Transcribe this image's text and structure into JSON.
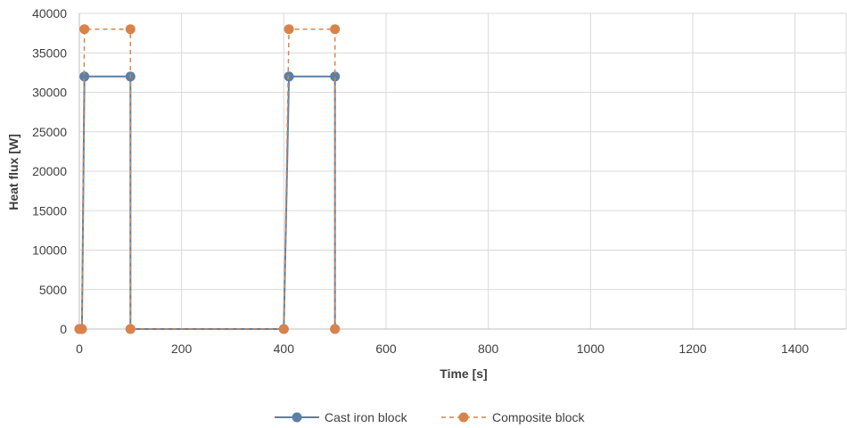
{
  "chart_data": {
    "type": "line",
    "title": "",
    "xlabel": "Time [s]",
    "ylabel": "Heat flux [W]",
    "xlim": [
      0,
      1500
    ],
    "ylim": [
      0,
      40000
    ],
    "xticks": [
      0,
      200,
      400,
      600,
      800,
      1000,
      1200,
      1400
    ],
    "yticks": [
      0,
      5000,
      10000,
      15000,
      20000,
      25000,
      30000,
      35000,
      40000
    ],
    "grid": true,
    "legend_position": "bottom",
    "series": [
      {
        "name": "Cast iron block",
        "color": "#5B7FA6",
        "line_style": "solid",
        "marker": "circle",
        "x": [
          0,
          5,
          10,
          100,
          100,
          400,
          410,
          500,
          500
        ],
        "y": [
          0,
          0,
          32000,
          32000,
          0,
          0,
          32000,
          32000,
          0
        ]
      },
      {
        "name": "Composite block",
        "color": "#D9834A",
        "line_style": "dashed",
        "marker": "circle",
        "x": [
          0,
          5,
          10,
          100,
          100,
          400,
          410,
          500,
          500
        ],
        "y": [
          0,
          0,
          38000,
          38000,
          0,
          0,
          38000,
          38000,
          0
        ]
      }
    ]
  }
}
